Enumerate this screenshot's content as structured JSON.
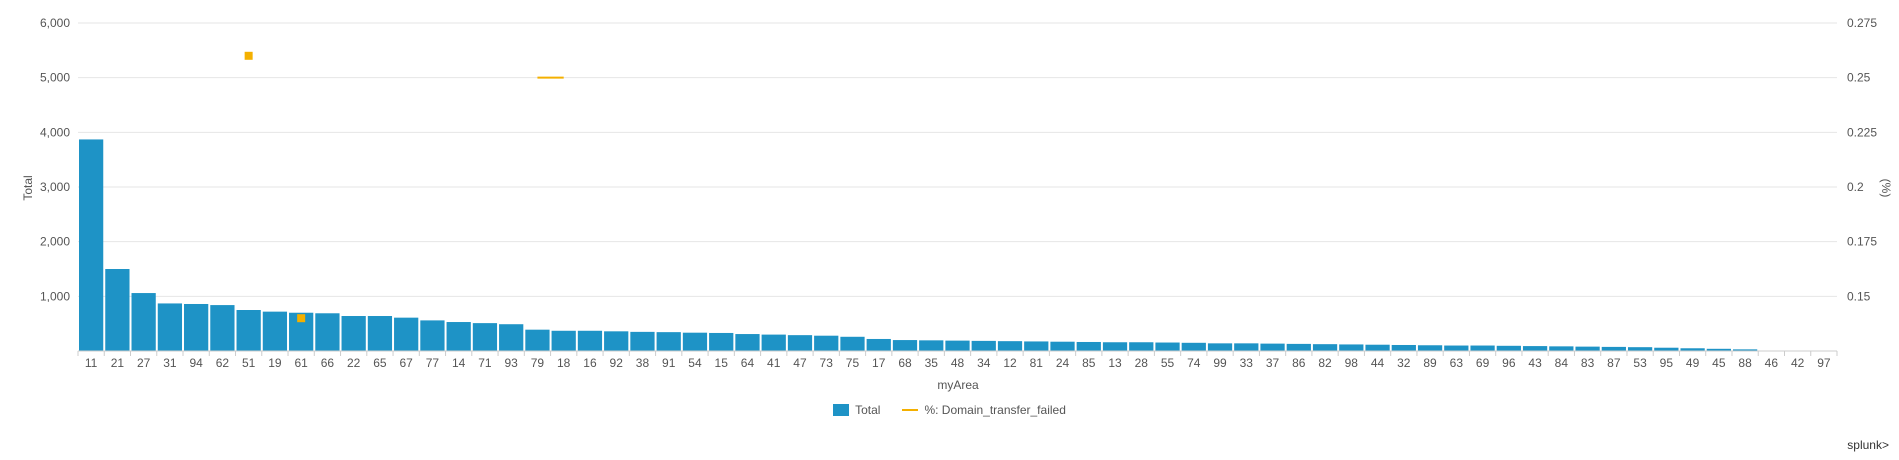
{
  "chart_data": {
    "type": "bar",
    "xlabel": "myArea",
    "ylabel": "Total",
    "y2label": "(%)",
    "ylim": [
      0,
      6000
    ],
    "y2lim": [
      0.125,
      0.275
    ],
    "yticks": [
      "1,000",
      "2,000",
      "3,000",
      "4,000",
      "5,000",
      "6,000"
    ],
    "y2ticks": [
      "0.15",
      "0.175",
      "0.2",
      "0.225",
      "0.25",
      "0.275"
    ],
    "grid": true,
    "legend_position": "bottom",
    "categories": [
      "11",
      "21",
      "27",
      "31",
      "94",
      "62",
      "51",
      "19",
      "61",
      "66",
      "22",
      "65",
      "67",
      "77",
      "14",
      "71",
      "93",
      "79",
      "18",
      "16",
      "92",
      "38",
      "91",
      "54",
      "15",
      "64",
      "41",
      "47",
      "73",
      "75",
      "17",
      "68",
      "35",
      "48",
      "34",
      "12",
      "81",
      "24",
      "85",
      "13",
      "28",
      "55",
      "74",
      "99",
      "33",
      "37",
      "86",
      "82",
      "98",
      "44",
      "32",
      "89",
      "63",
      "69",
      "96",
      "43",
      "84",
      "83",
      "87",
      "53",
      "95",
      "49",
      "45",
      "88",
      "46",
      "42",
      "97"
    ],
    "series": [
      {
        "name": "Total",
        "type": "bar",
        "color": "#1e93c6",
        "values": [
          3870,
          1500,
          1060,
          870,
          860,
          840,
          750,
          720,
          700,
          690,
          640,
          640,
          610,
          560,
          530,
          510,
          490,
          390,
          370,
          370,
          360,
          350,
          345,
          335,
          330,
          310,
          300,
          290,
          280,
          260,
          220,
          200,
          195,
          190,
          185,
          180,
          175,
          170,
          165,
          160,
          160,
          155,
          150,
          140,
          140,
          135,
          130,
          125,
          120,
          115,
          110,
          105,
          100,
          100,
          95,
          90,
          85,
          80,
          75,
          70,
          60,
          50,
          40,
          30,
          5,
          5,
          5
        ]
      },
      {
        "name": "%: Domain_transfer_failed",
        "type": "line",
        "color": "#f4b000",
        "points": [
          {
            "x": "51",
            "y": 0.26
          },
          {
            "x": "61",
            "y": 0.14
          },
          {
            "x": "79",
            "y": 0.25
          },
          {
            "x": "18",
            "y": 0.25
          }
        ]
      }
    ]
  },
  "legend": {
    "total_label": "Total",
    "pct_label": "%: Domain_transfer_failed"
  },
  "brand": "splunk>"
}
